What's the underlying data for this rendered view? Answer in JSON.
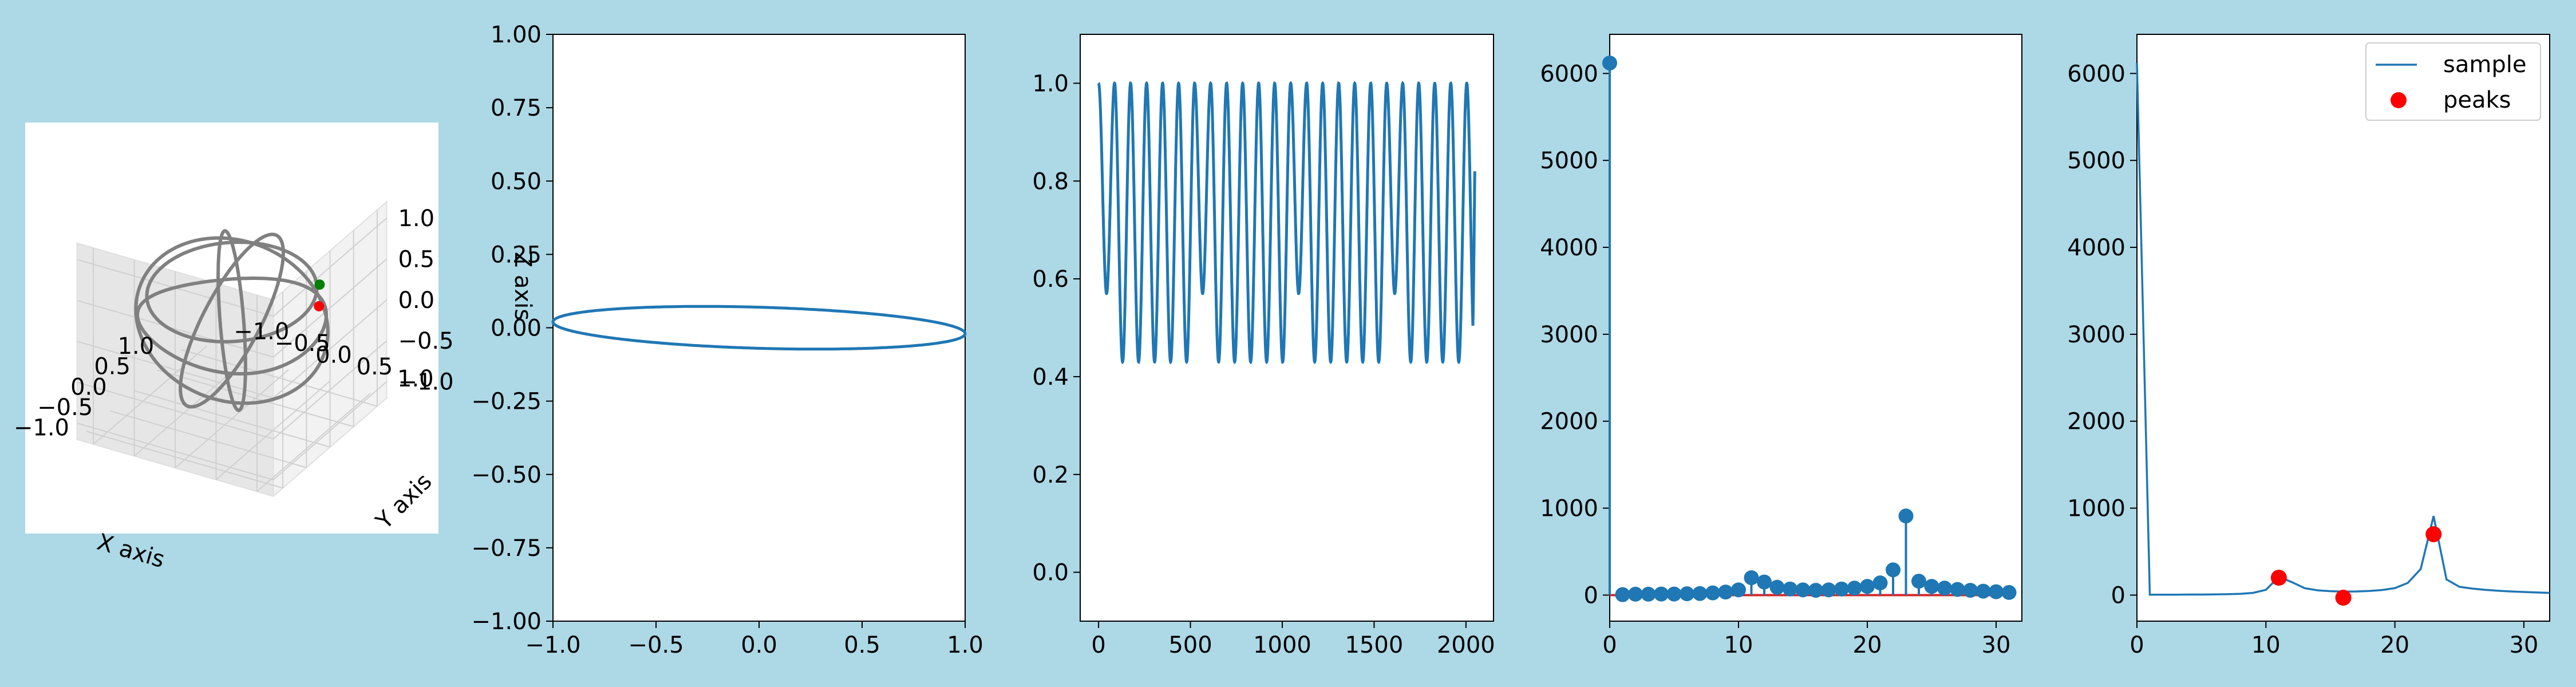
{
  "figure": {
    "background": "#add8e6"
  },
  "chart_data": [
    {
      "type": "line3d",
      "panel": "3d-trajectory",
      "xlabel": "X axis",
      "ylabel": "Y axis",
      "zlabel": "Z axis",
      "xlim": [
        -1.2,
        1.2
      ],
      "ylim": [
        -1.2,
        1.2
      ],
      "zlim": [
        -1.2,
        1.2
      ],
      "xticks": [
        "−1.0",
        "−0.5",
        "0.0",
        "0.5",
        "1.0"
      ],
      "yticks": [
        "−1.0",
        "−0.5",
        "0.0",
        "0.5",
        "1.0"
      ],
      "zticks": [
        "−1.0",
        "−0.5",
        "0.0",
        "0.5",
        "1.0"
      ],
      "grid": true,
      "colors": {
        "curve": "#808080",
        "start": "#008000",
        "end": "#ff0000"
      },
      "markers": {
        "start": [
          0.3,
          0.9,
          0.55
        ],
        "end": [
          0.2,
          0.95,
          0.35
        ]
      }
    },
    {
      "type": "line",
      "panel": "xy-projection",
      "xlim": [
        -1.0,
        1.0
      ],
      "ylim": [
        -1.0,
        1.0
      ],
      "xticks": [
        "−1.0",
        "−0.5",
        "0.0",
        "0.5",
        "1.0"
      ],
      "yticks": [
        "−1.00",
        "−0.75",
        "−0.50",
        "−0.25",
        "0.00",
        "0.25",
        "0.50",
        "0.75",
        "1.00"
      ],
      "ellipse": {
        "x_radius": 1.0,
        "y_radius": 0.07,
        "tilt_slope": -0.02
      },
      "color": "#1f77b4"
    },
    {
      "type": "line",
      "panel": "signal",
      "xlim": [
        -100,
        2150
      ],
      "ylim": [
        -0.1,
        1.1
      ],
      "xticks": [
        "0",
        "500",
        "1000",
        "1500",
        "2000"
      ],
      "yticks": [
        "0.0",
        "0.2",
        "0.4",
        "0.6",
        "0.8",
        "1.0"
      ],
      "signal": {
        "n_samples": 2048,
        "cycles": 23.5,
        "max": 1.0,
        "min": 0.43,
        "shallow_min": 0.57,
        "end_value": 0.82
      },
      "color": "#1f77b4"
    },
    {
      "type": "stem",
      "panel": "spectrum-stem",
      "xlim": [
        0,
        32
      ],
      "ylim": [
        -300,
        6450
      ],
      "xticks": [
        "0",
        "10",
        "20",
        "30"
      ],
      "yticks": [
        "0",
        "1000",
        "2000",
        "3000",
        "4000",
        "5000",
        "6000"
      ],
      "x": [
        0,
        1,
        2,
        3,
        4,
        5,
        6,
        7,
        8,
        9,
        10,
        11,
        12,
        13,
        14,
        15,
        16,
        17,
        18,
        19,
        20,
        21,
        22,
        23,
        24,
        25,
        26,
        27,
        28,
        29,
        30,
        31
      ],
      "values": [
        6120,
        5,
        10,
        10,
        12,
        12,
        15,
        18,
        25,
        35,
        60,
        200,
        150,
        90,
        70,
        60,
        55,
        60,
        70,
        80,
        100,
        140,
        290,
        910,
        160,
        100,
        80,
        65,
        55,
        45,
        38,
        30
      ],
      "colors": {
        "stem": "#1f77b4",
        "baseline": "#d62728"
      }
    },
    {
      "type": "line",
      "panel": "spectrum-peaks",
      "xlim": [
        0,
        32
      ],
      "ylim": [
        -300,
        6450
      ],
      "xticks": [
        "0",
        "10",
        "20",
        "30"
      ],
      "yticks": [
        "0",
        "1000",
        "2000",
        "3000",
        "4000",
        "5000",
        "6000"
      ],
      "series": [
        {
          "name": "sample",
          "x": [
            0,
            1,
            2,
            3,
            4,
            5,
            6,
            7,
            8,
            9,
            10,
            11,
            12,
            13,
            14,
            15,
            16,
            17,
            18,
            19,
            20,
            21,
            22,
            23,
            24,
            25,
            26,
            27,
            28,
            29,
            30,
            31,
            32
          ],
          "values": [
            6120,
            5,
            5,
            5,
            6,
            6,
            8,
            10,
            15,
            25,
            60,
            210,
            150,
            80,
            55,
            45,
            40,
            42,
            48,
            58,
            80,
            140,
            300,
            910,
            180,
            95,
            75,
            60,
            50,
            42,
            36,
            30,
            25
          ]
        },
        {
          "name": "peaks",
          "x": [
            11,
            16,
            23
          ],
          "values": [
            200,
            -30,
            700
          ]
        }
      ],
      "legend": "top-right",
      "colors": {
        "line": "#1f77b4",
        "peaks": "#ff0000"
      }
    }
  ]
}
